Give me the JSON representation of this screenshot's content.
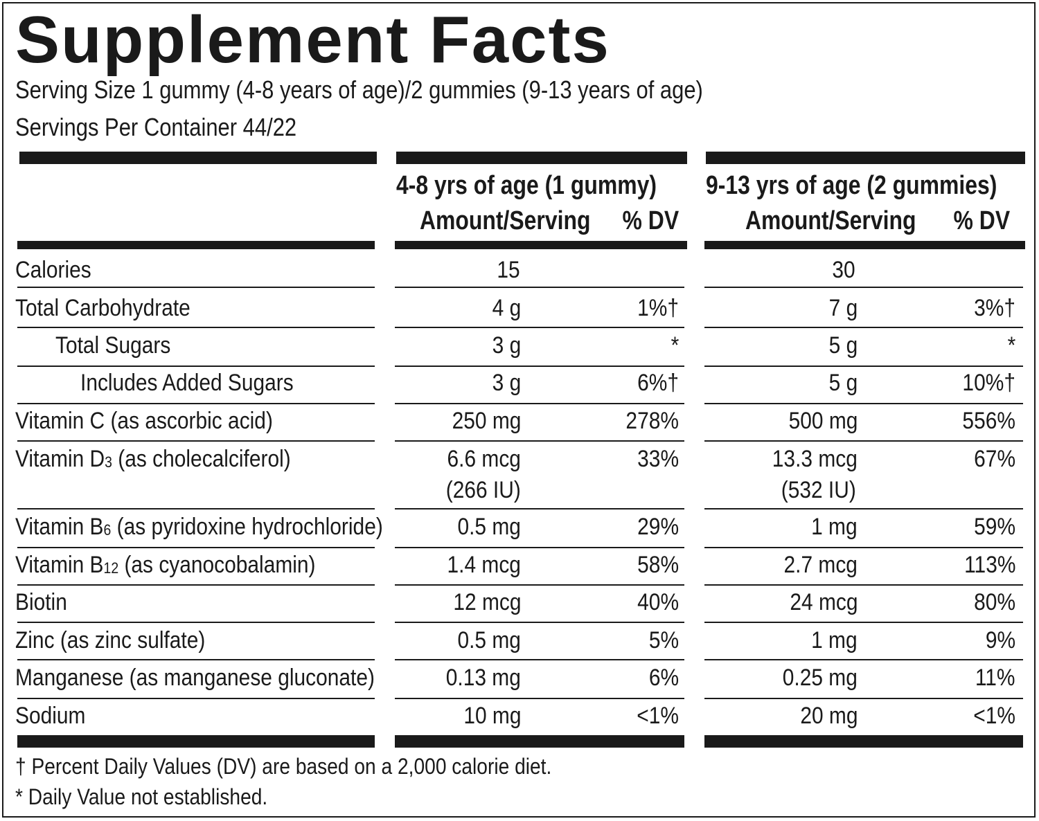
{
  "title": "Supplement Facts",
  "serving_size": "Serving Size 1 gummy (4-8 years of age)/2 gummies (9-13 years of age)",
  "servings_per_container": "Servings Per Container 44/22",
  "columns": {
    "group1": {
      "title": "4-8 yrs of age (1 gummy)",
      "amount_header": "Amount/Serving",
      "dv_header": "% DV"
    },
    "group2": {
      "title": "9-13 yrs of age (2 gummies)",
      "amount_header": "Amount/Serving",
      "dv_header": "% DV"
    }
  },
  "rows": [
    {
      "name": "Calories",
      "indent": 0,
      "a1": "15",
      "d1": "",
      "a2": "30",
      "d2": ""
    },
    {
      "name": "Total Carbohydrate",
      "indent": 0,
      "a1": "4 g",
      "d1": "1%†",
      "a2": "7 g",
      "d2": "3%†"
    },
    {
      "name": "Total Sugars",
      "indent": 1,
      "a1": "3 g",
      "d1": "*",
      "a2": "5 g",
      "d2": "*"
    },
    {
      "name": "Includes Added Sugars",
      "indent": 2,
      "a1": "3 g",
      "d1": "6%†",
      "a2": "5 g",
      "d2": "10%†"
    },
    {
      "name": "Vitamin C (as ascorbic acid)",
      "indent": 0,
      "a1": "250 mg",
      "d1": "278%",
      "a2": "500 mg",
      "d2": "556%"
    },
    {
      "name_pre": "Vitamin D",
      "name_sub": "3",
      "name_post": " (as cholecalciferol)",
      "indent": 0,
      "a1": "6.6 mcg",
      "a1_extra": "(266 IU)",
      "d1": "33%",
      "a2": "13.3 mcg",
      "a2_extra": "(532 IU)",
      "d2": "67%"
    },
    {
      "name_pre": "Vitamin B",
      "name_sub": "6",
      "name_post": " (as pyridoxine hydrochloride)",
      "indent": 0,
      "a1": "0.5 mg",
      "d1": "29%",
      "a2": "1 mg",
      "d2": "59%"
    },
    {
      "name_pre": "Vitamin B",
      "name_sub": "12",
      "name_post": " (as cyanocobalamin)",
      "indent": 0,
      "a1": "1.4 mcg",
      "d1": "58%",
      "a2": "2.7 mcg",
      "d2": "113%"
    },
    {
      "name": "Biotin",
      "indent": 0,
      "a1": "12 mcg",
      "d1": "40%",
      "a2": "24 mcg",
      "d2": "80%"
    },
    {
      "name": "Zinc (as zinc sulfate)",
      "indent": 0,
      "a1": "0.5 mg",
      "d1": "5%",
      "a2": "1 mg",
      "d2": "9%"
    },
    {
      "name": "Manganese (as manganese gluconate)",
      "indent": 0,
      "a1": "0.13 mg",
      "d1": "6%",
      "a2": "0.25 mg",
      "d2": "11%"
    },
    {
      "name": "Sodium",
      "indent": 0,
      "a1": "10 mg",
      "d1": "<1%",
      "a2": "20 mg",
      "d2": "<1%"
    }
  ],
  "footnotes": {
    "dagger": "† Percent Daily Values (DV) are based on a 2,000 calorie diet.",
    "asterisk": "* Daily Value not established."
  }
}
